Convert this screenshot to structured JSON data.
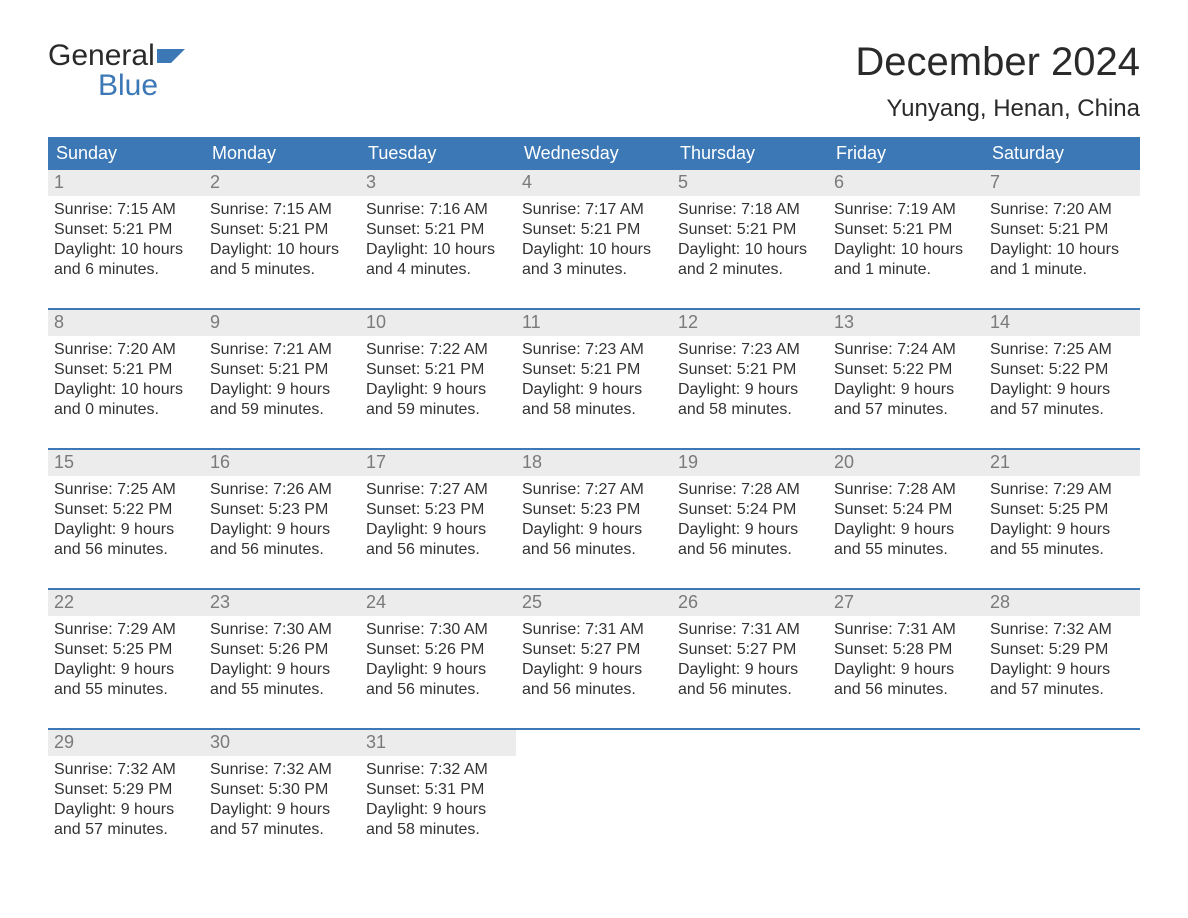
{
  "logo": {
    "line1": "General",
    "line2": "Blue"
  },
  "title": {
    "month": "December 2024",
    "location": "Yunyang, Henan, China"
  },
  "colors": {
    "header_bg": "#3b78b5",
    "header_text": "#ffffff",
    "daynum_bg": "#ececec",
    "daynum_text": "#7a7a7a",
    "body_text": "#333333",
    "week_border": "#3b78b5",
    "page_bg": "#ffffff",
    "logo_blue": "#3b78b5"
  },
  "typography": {
    "title_fontsize": 40,
    "location_fontsize": 24,
    "header_fontsize": 18,
    "daynum_fontsize": 18,
    "body_fontsize": 16,
    "logo_fontsize": 30
  },
  "weekdays": [
    "Sunday",
    "Monday",
    "Tuesday",
    "Wednesday",
    "Thursday",
    "Friday",
    "Saturday"
  ],
  "weeks": [
    [
      {
        "n": "1",
        "sunrise": "Sunrise: 7:15 AM",
        "sunset": "Sunset: 5:21 PM",
        "d1": "Daylight: 10 hours",
        "d2": "and 6 minutes."
      },
      {
        "n": "2",
        "sunrise": "Sunrise: 7:15 AM",
        "sunset": "Sunset: 5:21 PM",
        "d1": "Daylight: 10 hours",
        "d2": "and 5 minutes."
      },
      {
        "n": "3",
        "sunrise": "Sunrise: 7:16 AM",
        "sunset": "Sunset: 5:21 PM",
        "d1": "Daylight: 10 hours",
        "d2": "and 4 minutes."
      },
      {
        "n": "4",
        "sunrise": "Sunrise: 7:17 AM",
        "sunset": "Sunset: 5:21 PM",
        "d1": "Daylight: 10 hours",
        "d2": "and 3 minutes."
      },
      {
        "n": "5",
        "sunrise": "Sunrise: 7:18 AM",
        "sunset": "Sunset: 5:21 PM",
        "d1": "Daylight: 10 hours",
        "d2": "and 2 minutes."
      },
      {
        "n": "6",
        "sunrise": "Sunrise: 7:19 AM",
        "sunset": "Sunset: 5:21 PM",
        "d1": "Daylight: 10 hours",
        "d2": "and 1 minute."
      },
      {
        "n": "7",
        "sunrise": "Sunrise: 7:20 AM",
        "sunset": "Sunset: 5:21 PM",
        "d1": "Daylight: 10 hours",
        "d2": "and 1 minute."
      }
    ],
    [
      {
        "n": "8",
        "sunrise": "Sunrise: 7:20 AM",
        "sunset": "Sunset: 5:21 PM",
        "d1": "Daylight: 10 hours",
        "d2": "and 0 minutes."
      },
      {
        "n": "9",
        "sunrise": "Sunrise: 7:21 AM",
        "sunset": "Sunset: 5:21 PM",
        "d1": "Daylight: 9 hours",
        "d2": "and 59 minutes."
      },
      {
        "n": "10",
        "sunrise": "Sunrise: 7:22 AM",
        "sunset": "Sunset: 5:21 PM",
        "d1": "Daylight: 9 hours",
        "d2": "and 59 minutes."
      },
      {
        "n": "11",
        "sunrise": "Sunrise: 7:23 AM",
        "sunset": "Sunset: 5:21 PM",
        "d1": "Daylight: 9 hours",
        "d2": "and 58 minutes."
      },
      {
        "n": "12",
        "sunrise": "Sunrise: 7:23 AM",
        "sunset": "Sunset: 5:21 PM",
        "d1": "Daylight: 9 hours",
        "d2": "and 58 minutes."
      },
      {
        "n": "13",
        "sunrise": "Sunrise: 7:24 AM",
        "sunset": "Sunset: 5:22 PM",
        "d1": "Daylight: 9 hours",
        "d2": "and 57 minutes."
      },
      {
        "n": "14",
        "sunrise": "Sunrise: 7:25 AM",
        "sunset": "Sunset: 5:22 PM",
        "d1": "Daylight: 9 hours",
        "d2": "and 57 minutes."
      }
    ],
    [
      {
        "n": "15",
        "sunrise": "Sunrise: 7:25 AM",
        "sunset": "Sunset: 5:22 PM",
        "d1": "Daylight: 9 hours",
        "d2": "and 56 minutes."
      },
      {
        "n": "16",
        "sunrise": "Sunrise: 7:26 AM",
        "sunset": "Sunset: 5:23 PM",
        "d1": "Daylight: 9 hours",
        "d2": "and 56 minutes."
      },
      {
        "n": "17",
        "sunrise": "Sunrise: 7:27 AM",
        "sunset": "Sunset: 5:23 PM",
        "d1": "Daylight: 9 hours",
        "d2": "and 56 minutes."
      },
      {
        "n": "18",
        "sunrise": "Sunrise: 7:27 AM",
        "sunset": "Sunset: 5:23 PM",
        "d1": "Daylight: 9 hours",
        "d2": "and 56 minutes."
      },
      {
        "n": "19",
        "sunrise": "Sunrise: 7:28 AM",
        "sunset": "Sunset: 5:24 PM",
        "d1": "Daylight: 9 hours",
        "d2": "and 56 minutes."
      },
      {
        "n": "20",
        "sunrise": "Sunrise: 7:28 AM",
        "sunset": "Sunset: 5:24 PM",
        "d1": "Daylight: 9 hours",
        "d2": "and 55 minutes."
      },
      {
        "n": "21",
        "sunrise": "Sunrise: 7:29 AM",
        "sunset": "Sunset: 5:25 PM",
        "d1": "Daylight: 9 hours",
        "d2": "and 55 minutes."
      }
    ],
    [
      {
        "n": "22",
        "sunrise": "Sunrise: 7:29 AM",
        "sunset": "Sunset: 5:25 PM",
        "d1": "Daylight: 9 hours",
        "d2": "and 55 minutes."
      },
      {
        "n": "23",
        "sunrise": "Sunrise: 7:30 AM",
        "sunset": "Sunset: 5:26 PM",
        "d1": "Daylight: 9 hours",
        "d2": "and 55 minutes."
      },
      {
        "n": "24",
        "sunrise": "Sunrise: 7:30 AM",
        "sunset": "Sunset: 5:26 PM",
        "d1": "Daylight: 9 hours",
        "d2": "and 56 minutes."
      },
      {
        "n": "25",
        "sunrise": "Sunrise: 7:31 AM",
        "sunset": "Sunset: 5:27 PM",
        "d1": "Daylight: 9 hours",
        "d2": "and 56 minutes."
      },
      {
        "n": "26",
        "sunrise": "Sunrise: 7:31 AM",
        "sunset": "Sunset: 5:27 PM",
        "d1": "Daylight: 9 hours",
        "d2": "and 56 minutes."
      },
      {
        "n": "27",
        "sunrise": "Sunrise: 7:31 AM",
        "sunset": "Sunset: 5:28 PM",
        "d1": "Daylight: 9 hours",
        "d2": "and 56 minutes."
      },
      {
        "n": "28",
        "sunrise": "Sunrise: 7:32 AM",
        "sunset": "Sunset: 5:29 PM",
        "d1": "Daylight: 9 hours",
        "d2": "and 57 minutes."
      }
    ],
    [
      {
        "n": "29",
        "sunrise": "Sunrise: 7:32 AM",
        "sunset": "Sunset: 5:29 PM",
        "d1": "Daylight: 9 hours",
        "d2": "and 57 minutes."
      },
      {
        "n": "30",
        "sunrise": "Sunrise: 7:32 AM",
        "sunset": "Sunset: 5:30 PM",
        "d1": "Daylight: 9 hours",
        "d2": "and 57 minutes."
      },
      {
        "n": "31",
        "sunrise": "Sunrise: 7:32 AM",
        "sunset": "Sunset: 5:31 PM",
        "d1": "Daylight: 9 hours",
        "d2": "and 58 minutes."
      },
      {
        "empty": true
      },
      {
        "empty": true
      },
      {
        "empty": true
      },
      {
        "empty": true
      }
    ]
  ]
}
